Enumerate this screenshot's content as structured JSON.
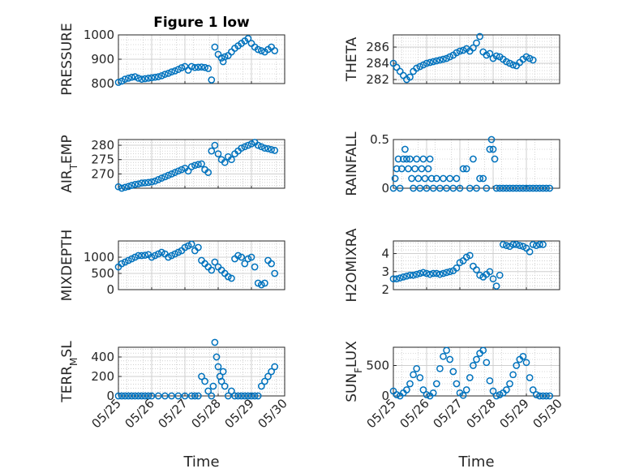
{
  "title": "Figure 1 low",
  "xlabel": "Time",
  "x_tick_labels": [
    "05/25",
    "05/26",
    "05/27",
    "05/28",
    "05/29",
    "05/30"
  ],
  "colors": {
    "marker": "#0072bd",
    "axes": "#262626",
    "grid": "#cfcfcf"
  },
  "chart_data": [
    {
      "type": "scatter",
      "title": "Figure 1 low",
      "ylabel": "PRESSURE",
      "ylabel_sub": "",
      "xlim": [
        0,
        5
      ],
      "ylim": [
        800,
        1000
      ],
      "yticks": [
        800,
        900,
        1000
      ],
      "grid": true,
      "x": [
        0,
        0.1,
        0.2,
        0.3,
        0.4,
        0.5,
        0.6,
        0.7,
        0.8,
        0.9,
        1,
        1.1,
        1.2,
        1.3,
        1.4,
        1.5,
        1.6,
        1.7,
        1.8,
        1.9,
        2,
        2.1,
        2.2,
        2.3,
        2.4,
        2.5,
        2.6,
        2.7,
        2.8,
        2.9,
        3,
        3.1,
        3.15,
        3.2,
        3.3,
        3.4,
        3.5,
        3.6,
        3.7,
        3.8,
        3.9,
        4,
        4.1,
        4.2,
        4.3,
        4.4,
        4.5,
        4.6,
        4.7
      ],
      "y": [
        805,
        810,
        818,
        822,
        826,
        828,
        822,
        818,
        820,
        822,
        824,
        826,
        828,
        832,
        838,
        842,
        848,
        852,
        858,
        865,
        870,
        855,
        870,
        866,
        867,
        868,
        866,
        862,
        815,
        950,
        920,
        905,
        890,
        910,
        915,
        930,
        945,
        955,
        965,
        975,
        985,
        965,
        950,
        940,
        935,
        930,
        940,
        950,
        935
      ]
    },
    {
      "type": "scatter",
      "ylabel": "THETA",
      "ylabel_sub": "",
      "xlim": [
        0,
        5
      ],
      "ylim": [
        281.5,
        287.5
      ],
      "yticks": [
        282,
        284,
        286
      ],
      "grid": true,
      "x": [
        0,
        0.1,
        0.2,
        0.3,
        0.4,
        0.5,
        0.6,
        0.7,
        0.8,
        0.9,
        1,
        1.1,
        1.2,
        1.3,
        1.4,
        1.5,
        1.6,
        1.7,
        1.8,
        1.9,
        2,
        2.1,
        2.2,
        2.3,
        2.4,
        2.5,
        2.6,
        2.7,
        2.8,
        2.9,
        3,
        3.1,
        3.2,
        3.3,
        3.4,
        3.5,
        3.6,
        3.7,
        3.8,
        3.9,
        4,
        4.1,
        4.2
      ],
      "y": [
        284,
        283.5,
        283,
        282.5,
        282,
        282.3,
        283,
        283.4,
        283.6,
        283.8,
        284,
        284.1,
        284.2,
        284.3,
        284.4,
        284.5,
        284.6,
        284.8,
        285,
        285.3,
        285.5,
        285.6,
        285.8,
        285.5,
        285.9,
        286.5,
        287.3,
        285.4,
        285,
        285.2,
        284.6,
        284.9,
        284.8,
        284.5,
        284.2,
        284,
        283.8,
        283.7,
        284.1,
        284.5,
        284.8,
        284.6,
        284.4
      ]
    },
    {
      "type": "scatter",
      "ylabel": "AIR",
      "ylabel_sub": "T",
      "ylabel_after": "EMP",
      "xlim": [
        0,
        5
      ],
      "ylim": [
        265,
        282
      ],
      "yticks": [
        270,
        275,
        280
      ],
      "grid": true,
      "x": [
        0,
        0.1,
        0.2,
        0.3,
        0.4,
        0.5,
        0.6,
        0.7,
        0.8,
        0.9,
        1,
        1.1,
        1.2,
        1.3,
        1.4,
        1.5,
        1.6,
        1.7,
        1.8,
        1.9,
        2,
        2.1,
        2.2,
        2.3,
        2.4,
        2.5,
        2.6,
        2.7,
        2.8,
        2.9,
        3,
        3.1,
        3.2,
        3.3,
        3.4,
        3.5,
        3.6,
        3.7,
        3.8,
        3.9,
        4,
        4.1,
        4.2,
        4.3,
        4.4,
        4.5,
        4.6,
        4.7
      ],
      "y": [
        265.5,
        265,
        265.3,
        265.6,
        266,
        266.3,
        266.5,
        266.8,
        266.9,
        267,
        267.2,
        267.5,
        268,
        268.5,
        269,
        269.5,
        270,
        270.5,
        271,
        271.5,
        272,
        271,
        272.5,
        273,
        273.3,
        273.5,
        271.5,
        270.5,
        278,
        280,
        277,
        275,
        274,
        276,
        275,
        277,
        278,
        279,
        279.5,
        280,
        280.5,
        281,
        280,
        279.5,
        279,
        278.8,
        278.5,
        278.2
      ]
    },
    {
      "type": "scatter",
      "ylabel": "RAINFALL",
      "ylabel_sub": "",
      "xlim": [
        0,
        5
      ],
      "ylim": [
        0,
        0.5
      ],
      "yticks": [
        0,
        0.5
      ],
      "grid": true,
      "x": [
        0,
        0.05,
        0.1,
        0.15,
        0.2,
        0.25,
        0.3,
        0.35,
        0.4,
        0.45,
        0.5,
        0.55,
        0.6,
        0.65,
        0.7,
        0.75,
        0.8,
        0.85,
        0.9,
        0.95,
        1,
        1.05,
        1.1,
        1.15,
        1.2,
        1.3,
        1.4,
        1.5,
        1.6,
        1.7,
        1.8,
        1.9,
        2,
        2.1,
        2.2,
        2.3,
        2.4,
        2.5,
        2.6,
        2.7,
        2.8,
        2.9,
        2.95,
        3,
        3.05,
        3.1,
        3.2,
        3.3,
        3.4,
        3.5,
        3.6,
        3.7,
        3.8,
        3.9,
        4,
        4.1,
        4.2,
        4.3,
        4.4,
        4.5,
        4.6,
        4.7
      ],
      "y": [
        0,
        0.1,
        0.2,
        0.3,
        0,
        0.2,
        0.3,
        0.4,
        0.3,
        0.2,
        0.3,
        0.1,
        0,
        0.2,
        0.3,
        0.1,
        0,
        0.2,
        0.3,
        0.1,
        0,
        0.2,
        0.3,
        0.1,
        0,
        0.1,
        0,
        0.1,
        0,
        0.1,
        0,
        0.1,
        0,
        0.2,
        0.2,
        0,
        0.3,
        0,
        0.1,
        0.1,
        0,
        0.4,
        0.5,
        0.4,
        0.3,
        0,
        0,
        0,
        0,
        0,
        0,
        0,
        0,
        0,
        0,
        0,
        0,
        0,
        0,
        0,
        0,
        0
      ]
    },
    {
      "type": "scatter",
      "ylabel": "MIXDEPTH",
      "ylabel_sub": "",
      "xlim": [
        0,
        5
      ],
      "ylim": [
        0,
        1500
      ],
      "yticks": [
        0,
        500,
        1000
      ],
      "grid": true,
      "x": [
        0,
        0.1,
        0.2,
        0.3,
        0.4,
        0.5,
        0.6,
        0.7,
        0.8,
        0.9,
        1,
        1.1,
        1.2,
        1.3,
        1.4,
        1.5,
        1.6,
        1.7,
        1.8,
        1.9,
        2,
        2.1,
        2.2,
        2.3,
        2.4,
        2.5,
        2.6,
        2.7,
        2.8,
        2.9,
        3,
        3.1,
        3.2,
        3.3,
        3.4,
        3.5,
        3.6,
        3.7,
        3.8,
        3.9,
        4,
        4.1,
        4.2,
        4.3,
        4.4,
        4.5,
        4.6,
        4.7
      ],
      "y": [
        700,
        800,
        850,
        900,
        950,
        1000,
        1050,
        1050,
        1060,
        1080,
        1000,
        1050,
        1100,
        1150,
        1100,
        1000,
        1050,
        1100,
        1150,
        1200,
        1300,
        1350,
        1400,
        1200,
        1300,
        900,
        800,
        700,
        600,
        850,
        700,
        600,
        500,
        400,
        350,
        950,
        1050,
        1000,
        800,
        950,
        1000,
        700,
        200,
        150,
        200,
        900,
        800,
        500
      ]
    },
    {
      "type": "scatter",
      "ylabel": "H2OMIXRA",
      "ylabel_sub": "",
      "xlim": [
        0,
        5
      ],
      "ylim": [
        2,
        4.7
      ],
      "yticks": [
        2,
        3,
        4
      ],
      "grid": true,
      "x": [
        0,
        0.1,
        0.2,
        0.3,
        0.4,
        0.5,
        0.6,
        0.7,
        0.8,
        0.9,
        1,
        1.1,
        1.2,
        1.3,
        1.4,
        1.5,
        1.6,
        1.7,
        1.8,
        1.9,
        2,
        2.1,
        2.2,
        2.3,
        2.4,
        2.5,
        2.6,
        2.7,
        2.8,
        2.9,
        3,
        3.1,
        3.2,
        3.3,
        3.4,
        3.5,
        3.6,
        3.7,
        3.8,
        3.9,
        4,
        4.1,
        4.2,
        4.3,
        4.4,
        4.5
      ],
      "y": [
        2.6,
        2.6,
        2.65,
        2.7,
        2.75,
        2.8,
        2.8,
        2.85,
        2.9,
        2.95,
        2.9,
        2.85,
        2.9,
        2.9,
        2.85,
        2.9,
        2.95,
        3,
        3.05,
        3.2,
        3.5,
        3.6,
        3.8,
        3.9,
        3.3,
        3.1,
        2.8,
        2.7,
        2.85,
        3,
        2.6,
        2.2,
        2.8,
        4.5,
        4.45,
        4.4,
        4.5,
        4.5,
        4.45,
        4.4,
        4.3,
        4.1,
        4.5,
        4.45,
        4.5,
        4.5
      ]
    },
    {
      "type": "scatter",
      "ylabel": "TERR",
      "ylabel_sub": "M",
      "ylabel_after": "SL",
      "xlim": [
        0,
        5
      ],
      "ylim": [
        0,
        500
      ],
      "yticks": [
        0,
        200,
        400
      ],
      "grid": true,
      "x": [
        0,
        0.1,
        0.2,
        0.3,
        0.4,
        0.5,
        0.6,
        0.7,
        0.8,
        0.9,
        1,
        1.2,
        1.4,
        1.6,
        1.8,
        2,
        2.2,
        2.3,
        2.4,
        2.5,
        2.6,
        2.7,
        2.8,
        2.85,
        2.9,
        2.95,
        3,
        3.05,
        3.1,
        3.15,
        3.2,
        3.3,
        3.4,
        3.5,
        3.6,
        3.7,
        3.8,
        3.9,
        4,
        4.1,
        4.2,
        4.3,
        4.4,
        4.5,
        4.6,
        4.7
      ],
      "y": [
        0,
        0,
        0,
        0,
        0,
        0,
        0,
        0,
        0,
        0,
        0,
        0,
        0,
        0,
        0,
        0,
        0,
        0,
        0,
        200,
        150,
        50,
        0,
        100,
        550,
        400,
        300,
        200,
        150,
        250,
        100,
        0,
        50,
        0,
        0,
        0,
        0,
        0,
        0,
        0,
        0,
        100,
        150,
        200,
        250,
        300
      ]
    },
    {
      "type": "scatter",
      "ylabel": "SUN",
      "ylabel_sub": "F",
      "ylabel_after": "LUX",
      "xlim": [
        0,
        5
      ],
      "ylim": [
        0,
        800
      ],
      "yticks": [
        0,
        500
      ],
      "grid": true,
      "x": [
        0,
        0.1,
        0.2,
        0.3,
        0.4,
        0.5,
        0.6,
        0.7,
        0.8,
        0.9,
        1,
        1.1,
        1.2,
        1.3,
        1.4,
        1.5,
        1.6,
        1.7,
        1.8,
        1.9,
        2,
        2.1,
        2.2,
        2.3,
        2.4,
        2.5,
        2.6,
        2.7,
        2.8,
        2.9,
        3,
        3.1,
        3.2,
        3.3,
        3.4,
        3.5,
        3.6,
        3.7,
        3.8,
        3.9,
        4,
        4.1,
        4.2,
        4.3,
        4.4,
        4.5,
        4.6,
        4.7
      ],
      "y": [
        80,
        20,
        0,
        50,
        100,
        200,
        350,
        450,
        300,
        100,
        20,
        0,
        50,
        200,
        450,
        650,
        750,
        600,
        400,
        200,
        50,
        10,
        100,
        300,
        500,
        600,
        700,
        750,
        550,
        250,
        80,
        0,
        20,
        50,
        100,
        200,
        350,
        500,
        600,
        650,
        550,
        300,
        100,
        20,
        0,
        0,
        0,
        0
      ]
    }
  ]
}
